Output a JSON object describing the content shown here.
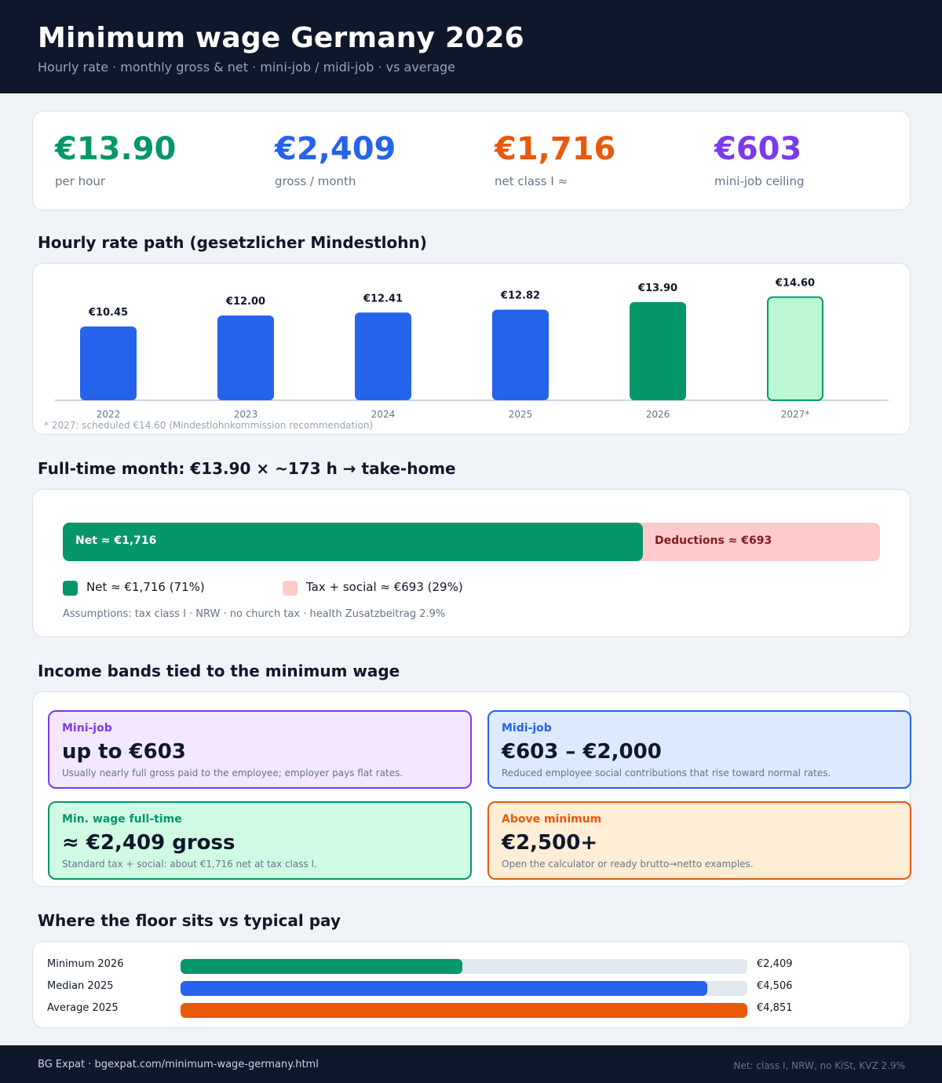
{
  "header": {
    "title": "Minimum wage Germany 2026",
    "subtitle": "Hourly rate · monthly gross & net · mini-job / midi-job · vs average"
  },
  "stats": [
    {
      "value": "€13.90",
      "label": "per hour",
      "color": "#059669"
    },
    {
      "value": "€2,409",
      "label": "gross / month",
      "color": "#2563eb"
    },
    {
      "value": "€1,716",
      "label": "net class I ≈",
      "color": "#ea580c"
    },
    {
      "value": "€603",
      "label": "mini-job ceiling",
      "color": "#7c3aed"
    }
  ],
  "sections": {
    "hourly": "Hourly rate path (gesetzlicher Mindestlohn)",
    "month": "Full-time month: €13.90 × ~173 h → take-home",
    "bands": "Income bands tied to the minimum wage",
    "compare": "Where the floor sits vs typical pay"
  },
  "chart_data": [
    {
      "type": "bar",
      "title": "Hourly rate path (gesetzlicher Mindestlohn)",
      "categories": [
        "2022",
        "2023",
        "2024",
        "2025",
        "2026",
        "2027*"
      ],
      "values": [
        10.45,
        12.0,
        12.41,
        12.82,
        13.9,
        14.6
      ],
      "data_labels": [
        "€10.45",
        "€12.00",
        "€12.41",
        "€12.82",
        "€13.90",
        "€14.60"
      ],
      "bar_colors": [
        "#2563eb",
        "#2563eb",
        "#2563eb",
        "#2563eb",
        "#059669",
        "#bbf7d0"
      ],
      "highlight": {
        "current": "2026",
        "scheduled": "2027*"
      },
      "grid": false,
      "note": "* 2027: scheduled €14.60 (Mindestlohnkommission recommendation)"
    },
    {
      "type": "bar",
      "orientation": "horizontal-stacked",
      "title": "Full-time month: €13.90 × ~173 h → take-home",
      "segments": [
        {
          "name": "Net",
          "value": 1716,
          "share": 0.71,
          "color": "#059669",
          "bar_label": "Net ≈ €1,716",
          "legend": "Net ≈ €1,716 (71%)"
        },
        {
          "name": "Deductions",
          "value": 693,
          "share": 0.29,
          "color": "#fecaca",
          "bar_label": "Deductions ≈ €693",
          "legend": "Tax + social ≈ €693 (29%)"
        }
      ],
      "assumptions": "Assumptions: tax class I · NRW · no church tax · health Zusatzbeitrag 2.9%"
    },
    {
      "type": "bar",
      "orientation": "horizontal",
      "title": "Where the floor sits vs typical pay",
      "categories": [
        "Minimum 2026",
        "Median 2025",
        "Average 2025"
      ],
      "values": [
        2409,
        4506,
        4851
      ],
      "data_labels": [
        "€2,409",
        "€4,506",
        "€4,851"
      ],
      "colors": [
        "#059669",
        "#2563eb",
        "#ea580c"
      ],
      "xlim": [
        0,
        4851
      ]
    }
  ],
  "bands": [
    {
      "title": "Mini-job",
      "value": "up to €603",
      "desc": "Usually nearly full gross paid to the employee; employer pays flat rates.",
      "accent": "#7c3aed",
      "bg": "#f3e8ff"
    },
    {
      "title": "Midi-job",
      "value": "€603 – €2,000",
      "desc": "Reduced employee social contributions that rise toward normal rates.",
      "accent": "#2563eb",
      "bg": "#dbeafe"
    },
    {
      "title": "Min. wage full-time",
      "value": "≈ €2,409 gross",
      "desc": "Standard tax + social: about €1,716 net at tax class I.",
      "accent": "#059669",
      "bg": "#d1fae5"
    },
    {
      "title": "Above minimum",
      "value": "€2,500+",
      "desc": "Open the calculator or ready brutto→netto examples.",
      "accent": "#ea580c",
      "bg": "#ffedd5"
    }
  ],
  "footer": {
    "source": "BG Expat · bgexpat.com/minimum-wage-germany.html",
    "note": "Net: class I, NRW, no KiSt, KVZ 2.9%"
  }
}
